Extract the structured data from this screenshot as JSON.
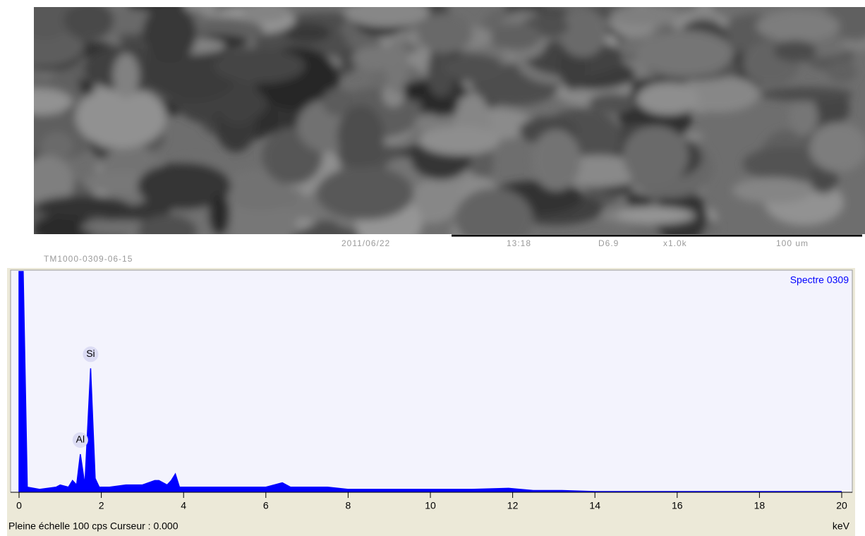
{
  "sem": {
    "date": "2011/06/22",
    "time": "13:18",
    "distance": "D6.9",
    "magnification": "x1.0k",
    "scale": "100 um",
    "file": "TM1000-0309-06-15"
  },
  "chart_data": {
    "type": "area",
    "series": [
      {
        "name": "Spectre 0309",
        "color": "#0000ff",
        "x": [
          0,
          0.1,
          0.2,
          0.5,
          0.9,
          1.0,
          1.2,
          1.3,
          1.4,
          1.49,
          1.6,
          1.74,
          1.85,
          1.95,
          2.2,
          2.6,
          3.0,
          3.3,
          3.4,
          3.6,
          3.7,
          3.8,
          3.9,
          4.5,
          5.0,
          5.5,
          6.0,
          6.4,
          6.6,
          7.0,
          7.5,
          8.0,
          9.0,
          10.0,
          10.5,
          11.0,
          11.9,
          12.5,
          13.2,
          14,
          20
        ],
        "values": [
          100,
          100,
          2,
          1,
          2,
          3,
          2,
          5,
          3,
          17,
          3,
          56,
          6,
          2,
          2,
          3,
          3,
          5,
          5,
          3,
          5,
          8,
          2,
          2,
          2,
          2,
          2,
          4,
          2,
          2,
          2,
          1,
          1,
          1,
          1,
          1,
          1.5,
          0.5,
          0.5,
          0,
          0
        ]
      }
    ],
    "annotations": [
      {
        "label": "Si",
        "x": 1.74
      },
      {
        "label": "Al",
        "x": 1.49
      }
    ],
    "xlim": [
      0,
      20
    ],
    "xticks": [
      0,
      2,
      4,
      6,
      8,
      10,
      12,
      14,
      16,
      18,
      20
    ],
    "ylim": [
      0,
      100
    ],
    "footer": "Pleine échelle 100 cps  Curseur : 0.000",
    "xlabel": "keV"
  }
}
